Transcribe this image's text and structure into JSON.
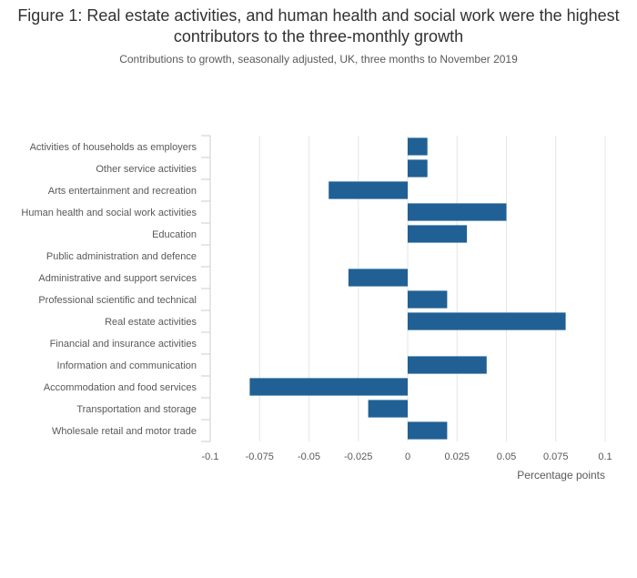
{
  "title": "Figure 1: Real estate activities, and human health and social work were the highest contributors to the three-monthly growth",
  "subtitle": "Contributions to growth, seasonally adjusted, UK, three months to November 2019",
  "chart_data": {
    "type": "bar",
    "orientation": "horizontal",
    "categories": [
      "Activities of households as employers",
      "Other service activities",
      "Arts entertainment and recreation",
      "Human health and social work activities",
      "Education",
      "Public administration and defence",
      "Administrative and support services",
      "Professional scientific and technical",
      "Real estate activities",
      "Financial and insurance activities",
      "Information and communication",
      "Accommodation and food services",
      "Transportation and storage",
      "Wholesale retail and motor trade"
    ],
    "values": [
      0.01,
      0.01,
      -0.04,
      0.05,
      0.03,
      0,
      -0.03,
      0.02,
      0.08,
      0,
      0.04,
      -0.08,
      -0.02,
      0.02
    ],
    "xlabel": "Percentage points",
    "xlim": [
      -0.1,
      0.1
    ],
    "xticks": [
      "-0.1",
      "-0.075",
      "-0.05",
      "-0.025",
      "0",
      "0.025",
      "0.05",
      "0.075",
      "0.1"
    ],
    "grid": true,
    "bar_color": "#206095",
    "grid_color": "#e6e6e6"
  }
}
